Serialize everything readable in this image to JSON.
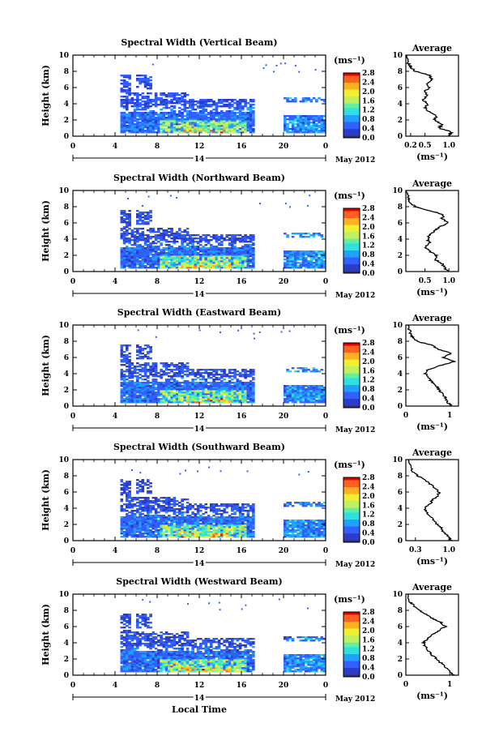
{
  "figure": {
    "xlabel": "Local Time",
    "date_label": "May 2012",
    "day_label": "14",
    "unit_label": "(ms⁻¹)",
    "avg_title": "Average",
    "avg_xlabel": "(ms⁻¹)",
    "colorbar_ticks": [
      "0.0",
      "0.4",
      "0.8",
      "1.2",
      "1.6",
      "2.0",
      "2.4",
      "2.8"
    ],
    "colormap": [
      "#303060",
      "#2a3cc8",
      "#3060ff",
      "#20a0ff",
      "#30e0e0",
      "#60f0a0",
      "#c0f060",
      "#f0f030",
      "#ffb020",
      "#ff6020",
      "#e00000"
    ]
  },
  "chart_data": [
    {
      "type": "heatmap",
      "title": "Spectral Width (Vertical Beam)",
      "xlabel": "",
      "ylabel": "Height (km)",
      "xlim": [
        0,
        24
      ],
      "ylim": [
        0,
        10
      ],
      "xticks": [
        "0",
        "4",
        "8",
        "12",
        "16",
        "20",
        "0"
      ],
      "yticks": [
        "0",
        "2",
        "4",
        "6",
        "8",
        "10"
      ],
      "colorbar_range": [
        0.0,
        2.8
      ],
      "avg_profile": {
        "xticks": [
          "0.2",
          "0.5",
          "1.0"
        ],
        "xlim": [
          0.1,
          1.2
        ],
        "ylim": [
          0,
          10
        ],
        "height_km": [
          0,
          0.5,
          1,
          1.5,
          2,
          2.5,
          3,
          3.5,
          4,
          4.5,
          5,
          5.5,
          6,
          6.5,
          7,
          7.5,
          8,
          8.5,
          9,
          10
        ],
        "width_ms": [
          1.0,
          1.05,
          0.8,
          0.85,
          0.7,
          0.75,
          0.6,
          0.5,
          0.55,
          0.45,
          0.55,
          0.5,
          0.6,
          0.55,
          0.65,
          0.6,
          0.3,
          0.2,
          0.15,
          0.12
        ]
      }
    },
    {
      "type": "heatmap",
      "title": "Spectral Width (Northward Beam)",
      "xlabel": "",
      "ylabel": "Height (km)",
      "xlim": [
        0,
        24
      ],
      "ylim": [
        0,
        10
      ],
      "xticks": [
        "0",
        "4",
        "8",
        "12",
        "16",
        "20",
        "0"
      ],
      "yticks": [
        "0",
        "2",
        "4",
        "6",
        "8",
        "10"
      ],
      "colorbar_range": [
        0.0,
        2.8
      ],
      "avg_profile": {
        "xticks": [
          "0.5",
          "1.0"
        ],
        "xlim": [
          0.1,
          1.2
        ],
        "ylim": [
          0,
          10
        ],
        "height_km": [
          0,
          0.5,
          1,
          1.5,
          2,
          2.5,
          3,
          3.5,
          4,
          4.5,
          5,
          5.5,
          6,
          6.5,
          7,
          7.5,
          8,
          8.5,
          9,
          10
        ],
        "width_ms": [
          1.0,
          0.9,
          0.85,
          0.7,
          0.75,
          0.6,
          0.5,
          0.6,
          0.55,
          0.6,
          0.7,
          0.8,
          1.0,
          0.85,
          0.9,
          0.6,
          0.3,
          0.2,
          0.15,
          0.12
        ]
      }
    },
    {
      "type": "heatmap",
      "title": "Spectral Width (Eastward Beam)",
      "xlabel": "",
      "ylabel": "Height (km)",
      "xlim": [
        0,
        24
      ],
      "ylim": [
        0,
        10
      ],
      "xticks": [
        "0",
        "4",
        "8",
        "12",
        "16",
        "20",
        "0"
      ],
      "yticks": [
        "0",
        "2",
        "4",
        "6",
        "8",
        "10"
      ],
      "colorbar_range": [
        0.0,
        2.8
      ],
      "avg_profile": {
        "xticks": [
          "0",
          "1"
        ],
        "xlim": [
          0,
          1.2
        ],
        "ylim": [
          0,
          10
        ],
        "height_km": [
          0,
          0.5,
          1,
          1.5,
          2,
          2.5,
          3,
          3.5,
          4,
          4.5,
          5,
          5.5,
          6,
          6.5,
          7,
          7.5,
          8,
          8.5,
          9,
          10
        ],
        "width_ms": [
          1.05,
          0.95,
          0.9,
          0.85,
          0.75,
          0.7,
          0.6,
          0.5,
          0.45,
          0.5,
          0.8,
          1.1,
          0.85,
          1.05,
          0.75,
          0.6,
          0.25,
          0.15,
          0.1,
          0.05
        ]
      }
    },
    {
      "type": "heatmap",
      "title": "Spectral Width (Southward Beam)",
      "xlabel": "",
      "ylabel": "Height (km)",
      "xlim": [
        0,
        24
      ],
      "ylim": [
        0,
        10
      ],
      "xticks": [
        "0",
        "4",
        "8",
        "12",
        "16",
        "20",
        "0"
      ],
      "yticks": [
        "0",
        "2",
        "4",
        "6",
        "8",
        "10"
      ],
      "colorbar_range": [
        0.0,
        2.8
      ],
      "avg_profile": {
        "xticks": [
          "0.3",
          "1.0"
        ],
        "xlim": [
          0.1,
          1.2
        ],
        "ylim": [
          0,
          10
        ],
        "height_km": [
          0,
          0.5,
          1,
          1.5,
          2,
          2.5,
          3,
          3.5,
          4,
          4.5,
          5,
          5.5,
          6,
          6.5,
          7,
          7.5,
          8,
          8.5,
          9,
          10
        ],
        "width_ms": [
          1.05,
          1.0,
          0.9,
          0.85,
          0.75,
          0.7,
          0.6,
          0.55,
          0.5,
          0.6,
          0.65,
          0.75,
          0.8,
          0.7,
          0.6,
          0.5,
          0.35,
          0.25,
          0.2,
          0.15
        ]
      }
    },
    {
      "type": "heatmap",
      "title": "Spectral Width (Westward Beam)",
      "xlabel": "Local Time",
      "ylabel": "Height (km)",
      "xlim": [
        0,
        24
      ],
      "ylim": [
        0,
        10
      ],
      "xticks": [
        "0",
        "4",
        "8",
        "12",
        "16",
        "20",
        "0"
      ],
      "yticks": [
        "0",
        "2",
        "4",
        "6",
        "8",
        "10"
      ],
      "colorbar_range": [
        0.0,
        2.8
      ],
      "avg_profile": {
        "xticks": [
          "0",
          "1"
        ],
        "xlim": [
          0,
          1.2
        ],
        "ylim": [
          0,
          10
        ],
        "height_km": [
          0,
          0.5,
          1,
          1.5,
          2,
          2.5,
          3,
          3.5,
          4,
          4.5,
          5,
          5.5,
          6,
          6.5,
          7,
          7.5,
          8,
          8.5,
          9,
          10
        ],
        "width_ms": [
          1.1,
          1.0,
          0.9,
          0.8,
          0.7,
          0.6,
          0.5,
          0.45,
          0.4,
          0.5,
          0.6,
          0.75,
          0.9,
          0.8,
          0.6,
          0.45,
          0.3,
          0.2,
          0.1,
          0.05
        ]
      }
    }
  ]
}
